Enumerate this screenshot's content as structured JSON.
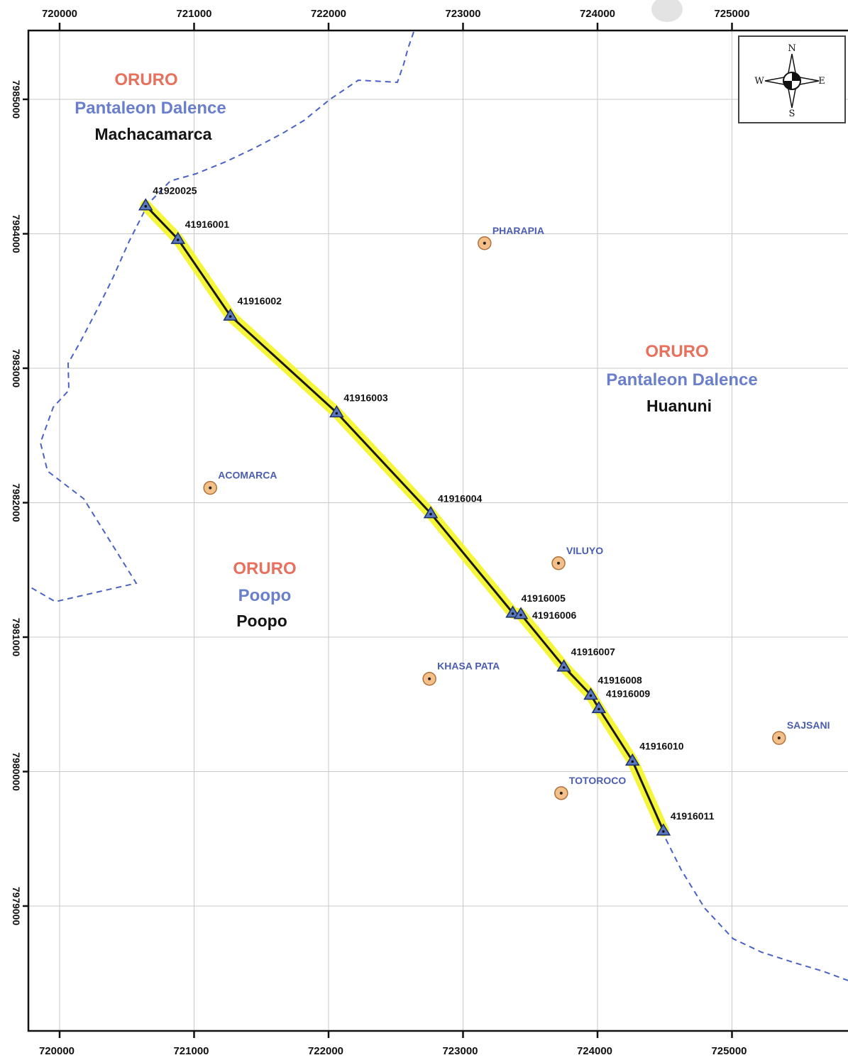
{
  "map": {
    "x_ticks": [
      "720000",
      "721000",
      "722000",
      "723000",
      "724000",
      "725000"
    ],
    "y_ticks": [
      "7985000",
      "7984000",
      "7983000",
      "7982000",
      "7981000",
      "7980000",
      "7979000"
    ],
    "colors": {
      "department": "#e8715e",
      "province": "#6a7fcc",
      "municipality": "#141414",
      "route_highlight": "#f5f53a",
      "route_line": "#1a1a1a",
      "boundary": "#4a62c4",
      "station_marker": "#5a78c0",
      "place_marker": "#f4c08a"
    },
    "regions": [
      {
        "department": "ORURO",
        "province": "Pantaleon Dalence",
        "municipality": "Machacamarca"
      },
      {
        "department": "ORURO",
        "province": "Pantaleon Dalence",
        "municipality": "Huanuni"
      },
      {
        "department": "ORURO",
        "province": "Poopo",
        "municipality": "Poopo"
      }
    ],
    "stations": [
      {
        "id": "41920025",
        "x": 720640,
        "y": 7984210
      },
      {
        "id": "41916001",
        "x": 720880,
        "y": 7983960
      },
      {
        "id": "41916002",
        "x": 721270,
        "y": 7983390
      },
      {
        "id": "41916003",
        "x": 722060,
        "y": 7982670
      },
      {
        "id": "41916004",
        "x": 722760,
        "y": 7981920
      },
      {
        "id": "41916005",
        "x": 723370,
        "y": 7981180
      },
      {
        "id": "41916006",
        "x": 723430,
        "y": 7981170
      },
      {
        "id": "41916007",
        "x": 723750,
        "y": 7980780
      },
      {
        "id": "41916008",
        "x": 723950,
        "y": 7980570
      },
      {
        "id": "41916009",
        "x": 724010,
        "y": 7980470
      },
      {
        "id": "41916010",
        "x": 724260,
        "y": 7980080
      },
      {
        "id": "41916011",
        "x": 724490,
        "y": 7979560
      }
    ],
    "places": [
      {
        "name": "PHARAPIA",
        "x": 723160,
        "y": 7983930
      },
      {
        "name": "ACOMARCA",
        "x": 721120,
        "y": 7982110
      },
      {
        "name": "VILUYO",
        "x": 723710,
        "y": 7981550
      },
      {
        "name": "KHASA PATA",
        "x": 722750,
        "y": 7980690
      },
      {
        "name": "SAJSANI",
        "x": 725350,
        "y": 7980250
      },
      {
        "name": "TOTOROCO",
        "x": 723730,
        "y": 7979840
      }
    ],
    "compass": {
      "n": "N",
      "s": "S",
      "e": "E",
      "w": "W"
    }
  }
}
